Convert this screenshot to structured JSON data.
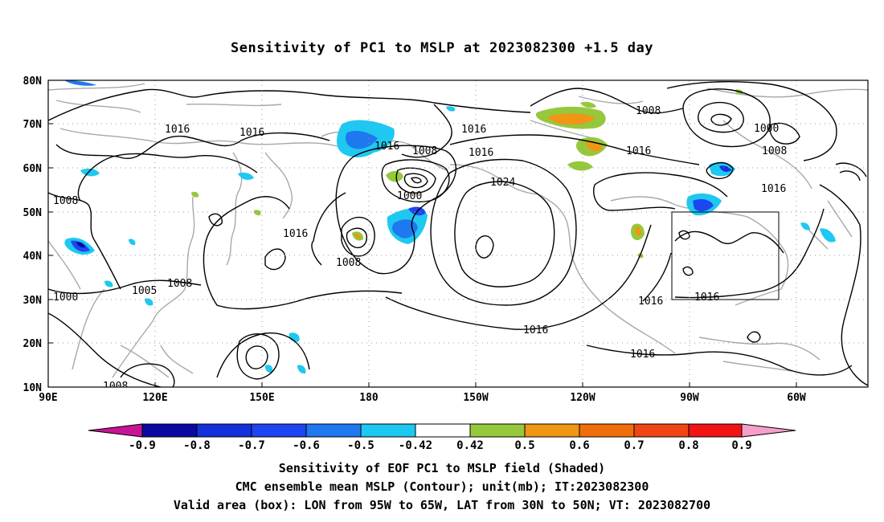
{
  "title": "Sensitivity of PC1 to MSLP at 2023082300 +1.5 day",
  "map": {
    "lon_labels": [
      "90E",
      "120E",
      "150E",
      "180",
      "150W",
      "120W",
      "90W",
      "60W"
    ],
    "lat_labels": [
      "80N",
      "70N",
      "60N",
      "50N",
      "40N",
      "30N",
      "20N",
      "10N"
    ],
    "contour_labels": [
      "1016",
      "1016",
      "1016",
      "1008",
      "1016",
      "1016",
      "1008",
      "1016",
      "1016",
      "1000",
      "1008",
      "1016",
      "1008",
      "1000",
      "1024",
      "1016",
      "1008",
      "1016",
      "1016",
      "1016",
      "1008",
      "1008",
      "1000",
      "1008",
      "1005",
      "1008"
    ]
  },
  "colorbar": {
    "labels": [
      "-0.9",
      "-0.8",
      "-0.7",
      "-0.6",
      "-0.5",
      "-0.42",
      "0.42",
      "0.5",
      "0.6",
      "0.7",
      "0.8",
      "0.9"
    ],
    "colors": [
      "#c81496",
      "#0a0aa0",
      "#1432dc",
      "#1e46f0",
      "#1e78f0",
      "#1ec8f0",
      "#ffffff",
      "#96c83c",
      "#f09614",
      "#f06e0a",
      "#f04614",
      "#f01414",
      "#f5a0c8"
    ]
  },
  "captions": [
    "Sensitivity of EOF PC1 to MSLP field (Shaded)",
    "CMC ensemble mean MSLP (Contour); unit(mb); IT:2023082300",
    "Valid area (box): LON from 95W to 65W, LAT from 30N to 50N; VT: 2023082700"
  ]
}
